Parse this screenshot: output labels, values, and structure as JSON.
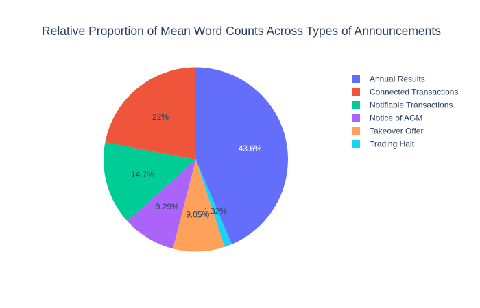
{
  "chart_data": {
    "type": "pie",
    "title": "Relative Proportion of Mean Word Counts Across Types of Announcements",
    "legend_position": "top-right",
    "slices": [
      {
        "label": "Annual Results",
        "value": 43.6,
        "display": "43.6%",
        "color": "#636efa",
        "text_color": "#ffffff"
      },
      {
        "label": "Trading Halt",
        "value": 1.32,
        "display": "1.32%",
        "color": "#19d3f3",
        "text_color": "#2a3f5f"
      },
      {
        "label": "Takeover Offer",
        "value": 9.05,
        "display": "9.05%",
        "color": "#ffa15a",
        "text_color": "#2a3f5f"
      },
      {
        "label": "Notice of AGM",
        "value": 9.29,
        "display": "9.29%",
        "color": "#ab63fa",
        "text_color": "#2a3f5f"
      },
      {
        "label": "Notifiable Transactions",
        "value": 14.7,
        "display": "14.7%",
        "color": "#00cc96",
        "text_color": "#2a3f5f"
      },
      {
        "label": "Connected Transactions",
        "value": 22,
        "display": "22%",
        "color": "#ef553b",
        "text_color": "#2a3f5f"
      }
    ],
    "legend": [
      {
        "label": "Annual Results",
        "color": "#636efa"
      },
      {
        "label": "Connected Transactions",
        "color": "#ef553b"
      },
      {
        "label": "Notifiable Transactions",
        "color": "#00cc96"
      },
      {
        "label": "Notice of AGM",
        "color": "#ab63fa"
      },
      {
        "label": "Takeover Offer",
        "color": "#ffa15a"
      },
      {
        "label": "Trading Halt",
        "color": "#19d3f3"
      }
    ]
  }
}
